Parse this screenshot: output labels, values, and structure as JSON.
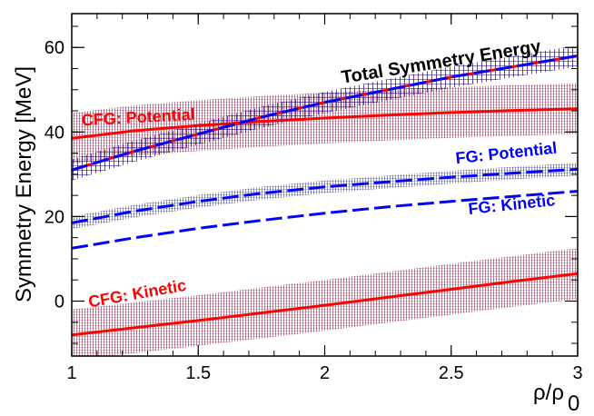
{
  "chart_data": {
    "type": "line",
    "title": "",
    "xlabel": "ρ/ρ0",
    "xlabel_main": "ρ/ρ",
    "xlabel_sub": "0",
    "ylabel": "Symmetry Energy [MeV]",
    "xlim": [
      1,
      3
    ],
    "ylim": [
      -13,
      68
    ],
    "x_ticks": [
      1,
      1.5,
      2,
      2.5,
      3
    ],
    "x_tick_labels": [
      "1",
      "1.5",
      "2",
      "2.5",
      "3"
    ],
    "y_ticks": [
      0,
      20,
      40,
      60
    ],
    "y_tick_labels": [
      "0",
      "20",
      "40",
      "60"
    ],
    "grid": false,
    "x": [
      1.0,
      1.25,
      1.5,
      1.75,
      2.0,
      2.25,
      2.5,
      2.75,
      3.0
    ],
    "series": [
      {
        "name": "Total Symmetry Energy",
        "values": [
          31,
          35.5,
          39.5,
          43.5,
          47,
          50,
          53,
          55.5,
          58
        ],
        "band_halfwidth": 2.5,
        "color": "#0000ff",
        "dash": true,
        "overlay_red": true
      },
      {
        "name": "CFG: Potential",
        "values": [
          38.5,
          40.3,
          41.5,
          42.5,
          43.3,
          44,
          44.6,
          45.1,
          45.5
        ],
        "band_halfwidth": 6,
        "color": "#ff0000",
        "dash": false
      },
      {
        "name": "FG: Potential",
        "values": [
          18.5,
          21.3,
          23.6,
          25.5,
          27.0,
          28.2,
          29.3,
          30.3,
          31.2
        ],
        "band_halfwidth": 1.5,
        "color": "#0000ff",
        "dash": true
      },
      {
        "name": "FG: Kinetic",
        "values": [
          12.5,
          15.0,
          17.2,
          19.1,
          20.8,
          22.3,
          23.6,
          24.8,
          26.0
        ],
        "band_halfwidth": 0,
        "color": "#0000ff",
        "dash": true
      },
      {
        "name": "CFG: Kinetic",
        "values": [
          -8,
          -6.3,
          -4.6,
          -2.8,
          -1.0,
          0.9,
          2.8,
          4.7,
          6.5
        ],
        "band_halfwidth": 6,
        "color": "#ff0000",
        "dash": false
      }
    ],
    "annotations": [
      {
        "text": "Total Symmetry Energy",
        "color": "#000000",
        "anchor_x": 2.07,
        "anchor_y": 51.5,
        "angle": -9
      },
      {
        "text": "CFG: Potential",
        "color": "#ff0000",
        "anchor_x": 1.04,
        "anchor_y": 41.5,
        "angle": -3
      },
      {
        "text": "FG: Potential",
        "color": "#0000ff",
        "anchor_x": 2.52,
        "anchor_y": 32.5,
        "angle": -6
      },
      {
        "text": "FG: Kinetic",
        "color": "#0000ff",
        "anchor_x": 2.57,
        "anchor_y": 20.5,
        "angle": -6
      },
      {
        "text": "CFG: Kinetic",
        "color": "#ff0000",
        "anchor_x": 1.07,
        "anchor_y": -1.5,
        "angle": -10
      }
    ]
  }
}
